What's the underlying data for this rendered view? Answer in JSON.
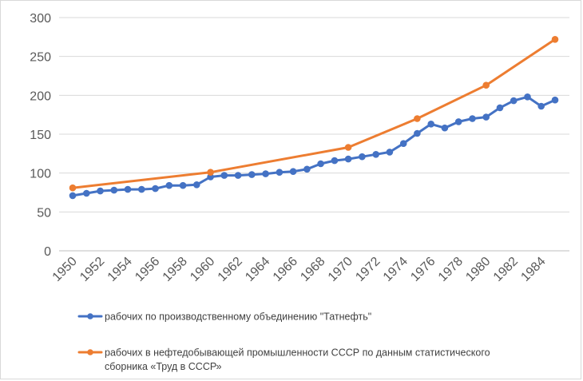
{
  "chart_data": {
    "type": "line",
    "title": "",
    "xlabel": "",
    "ylabel": "",
    "ylim": [
      0,
      300
    ],
    "xlim": [
      1950,
      1985
    ],
    "yticks": [
      0,
      50,
      100,
      150,
      200,
      250,
      300
    ],
    "xticks": [
      1950,
      1952,
      1954,
      1956,
      1958,
      1960,
      1962,
      1964,
      1966,
      1968,
      1970,
      1972,
      1974,
      1976,
      1978,
      1980,
      1982,
      1984
    ],
    "grid": "horizontal",
    "legend_position": "bottom",
    "series": [
      {
        "name": "рабочих по производственному объединению \"Татнефть\"",
        "legend_lines": [
          "рабочих по производственному объединению \"Татнефть\""
        ],
        "color": "#4472C4",
        "x": [
          1950,
          1951,
          1952,
          1953,
          1954,
          1955,
          1956,
          1957,
          1958,
          1959,
          1960,
          1961,
          1962,
          1963,
          1964,
          1965,
          1966,
          1967,
          1968,
          1969,
          1970,
          1971,
          1972,
          1973,
          1974,
          1975,
          1976,
          1977,
          1978,
          1979,
          1980,
          1981,
          1982,
          1983,
          1984,
          1985
        ],
        "values": [
          71,
          74,
          77,
          78,
          79,
          79,
          80,
          84,
          84,
          85,
          95,
          97,
          97,
          98,
          99,
          101,
          102,
          105,
          112,
          116,
          118,
          121,
          124,
          127,
          138,
          151,
          163,
          158,
          166,
          170,
          172,
          184,
          193,
          198,
          186,
          194
        ]
      },
      {
        "name": "рабочих в нефтедобывающей промышленности СССР по данным статистического сборника «Труд в СССР»",
        "legend_lines": [
          "рабочих в нефтедобывающей промышленности СССР по данным статистического",
          "сборника «Труд в СССР»"
        ],
        "color": "#ED7D31",
        "x": [
          1950,
          1960,
          1970,
          1975,
          1980,
          1985
        ],
        "values": [
          81,
          101,
          133,
          170,
          213,
          272
        ]
      }
    ]
  }
}
